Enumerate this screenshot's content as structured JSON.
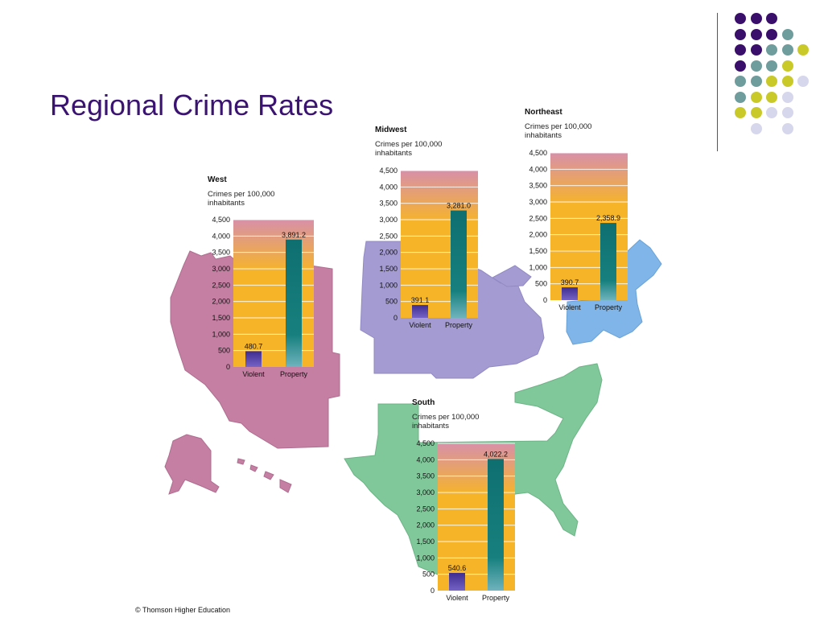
{
  "slide": {
    "title": "Regional Crime Rates",
    "credit": "© Thomson Higher Education"
  },
  "colors": {
    "title": "#3a1470",
    "west_region": "#c47fa2",
    "midwest_region": "#a59bd3",
    "northeast_region": "#7fb5e8",
    "south_region": "#80c89a",
    "violent_bar": "#4a3a9c",
    "property_bar": "#17807e",
    "chart_bg_top": "#d890a8",
    "chart_bg_bottom": "#f6b429"
  },
  "dot_grid_colors": [
    "#3a0f6b",
    "#6f9c9c",
    "#c9c92a",
    "#d6d6ec"
  ],
  "chart_data": [
    {
      "type": "bar",
      "region": "West",
      "title": "West",
      "ylabel": "Crimes per 100,000 inhabitants",
      "categories": [
        "Violent",
        "Property"
      ],
      "values": [
        480.7,
        3891.2
      ],
      "value_labels": [
        "480.7",
        "3,891.2"
      ],
      "ylim": [
        0,
        4500
      ],
      "yticks": [
        "0",
        "500",
        "1,000",
        "1,500",
        "2,000",
        "2,500",
        "3,000",
        "3,500",
        "4,000",
        "4,500"
      ],
      "grid": true
    },
    {
      "type": "bar",
      "region": "Midwest",
      "title": "Midwest",
      "ylabel": "Crimes per 100,000 inhabitants",
      "categories": [
        "Violent",
        "Property"
      ],
      "values": [
        391.1,
        3281.0
      ],
      "value_labels": [
        "391.1",
        "3,281.0"
      ],
      "ylim": [
        0,
        4500
      ],
      "yticks": [
        "0",
        "500",
        "1,000",
        "1,500",
        "2,000",
        "2,500",
        "3,000",
        "3,500",
        "4,000",
        "4,500"
      ],
      "grid": true
    },
    {
      "type": "bar",
      "region": "Northeast",
      "title": "Northeast",
      "ylabel": "Crimes per 100,000 inhabitants",
      "categories": [
        "Violent",
        "Property"
      ],
      "values": [
        390.7,
        2358.9
      ],
      "value_labels": [
        "390.7",
        "2,358.9"
      ],
      "ylim": [
        0,
        4500
      ],
      "yticks": [
        "0",
        "500",
        "1,000",
        "1,500",
        "2,000",
        "2,500",
        "3,000",
        "3,500",
        "4,000",
        "4,500"
      ],
      "grid": true
    },
    {
      "type": "bar",
      "region": "South",
      "title": "South",
      "ylabel": "Crimes per 100,000 inhabitants",
      "categories": [
        "Violent",
        "Property"
      ],
      "values": [
        540.6,
        4022.2
      ],
      "value_labels": [
        "540.6",
        "4,022.2"
      ],
      "ylim": [
        0,
        4500
      ],
      "yticks": [
        "0",
        "500",
        "1,000",
        "1,500",
        "2,000",
        "2,500",
        "3,000",
        "3,500",
        "4,000",
        "4,500"
      ],
      "grid": true
    }
  ]
}
